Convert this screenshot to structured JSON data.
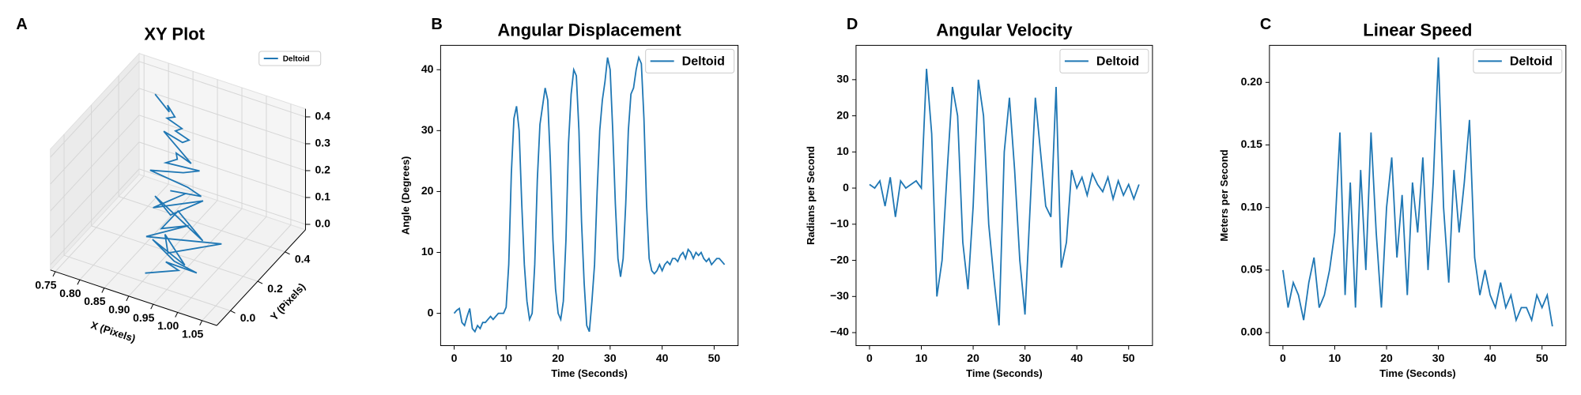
{
  "chart_data": [
    {
      "type": "line3d",
      "panel_label": "A",
      "title": "XY Plot",
      "xlabel": "X (Pixels)",
      "ylabel": "Y (Pixels)",
      "legend": "upper right",
      "xlim": [
        0.74,
        1.08
      ],
      "ylim": [
        -0.1,
        0.55
      ],
      "zlim": [
        -0.02,
        0.43
      ],
      "xticks": [
        0.75,
        {
          "value": 0.8,
          "label": "0.80"
        },
        0.85,
        {
          "value": 0.9,
          "label": "0.90"
        },
        0.95,
        {
          "value": 1.0,
          "label": "1.00"
        },
        1.05
      ],
      "yticks": [
        {
          "value": 0,
          "label": "0.0"
        },
        0.2,
        0.4
      ],
      "zticks": [
        {
          "value": 0,
          "label": "0.0"
        },
        0.1,
        0.2,
        0.3,
        0.4
      ],
      "grid": true,
      "series": [
        {
          "name": "Deltoid",
          "color": "#1f77b4",
          "x": [
            0.82,
            0.86,
            0.84,
            0.88,
            0.85,
            0.9,
            0.87,
            0.92,
            0.89,
            0.86,
            0.93,
            0.88,
            0.91,
            0.87,
            0.95,
            0.9,
            0.86,
            0.92,
            0.97,
            0.89,
            0.93,
            0.88,
            0.96,
            0.91,
            0.87,
            0.99,
            0.92,
            0.9,
            0.95,
            0.88,
            1.02,
            0.93,
            0.91,
            0.97,
            0.89,
            0.94,
            1.0,
            0.92,
            0.96,
            0.9
          ],
          "y": [
            0.38,
            0.34,
            0.4,
            0.31,
            0.36,
            0.29,
            0.35,
            0.27,
            0.33,
            0.3,
            0.25,
            0.32,
            0.22,
            0.28,
            0.24,
            0.3,
            0.2,
            0.26,
            0.18,
            0.24,
            0.21,
            0.15,
            0.23,
            0.17,
            0.2,
            0.12,
            0.19,
            0.14,
            0.16,
            0.1,
            0.15,
            0.08,
            0.13,
            0.06,
            0.11,
            0.09,
            0.04,
            0.1,
            0.05,
            0.02
          ],
          "z": [
            0.42,
            0.4,
            0.38,
            0.41,
            0.36,
            0.39,
            0.33,
            0.37,
            0.31,
            0.35,
            0.3,
            0.27,
            0.32,
            0.25,
            0.29,
            0.22,
            0.26,
            0.2,
            0.24,
            0.18,
            0.21,
            0.16,
            0.19,
            0.14,
            0.17,
            0.12,
            0.15,
            0.1,
            0.13,
            0.08,
            0.11,
            0.06,
            0.09,
            0.05,
            0.07,
            0.03,
            0.05,
            0.01,
            0.03,
            0.0
          ]
        }
      ]
    },
    {
      "type": "line",
      "panel_label": "B",
      "title": "Angular Displacement",
      "xlabel": "Time (Seconds)",
      "ylabel": "Angle (Degrees)",
      "legend": "upper right",
      "xlim": [
        -2.6,
        54.6
      ],
      "ylim": [
        -5.3,
        44
      ],
      "xticks": [
        0,
        10,
        20,
        30,
        40,
        50
      ],
      "yticks": [
        0,
        10,
        20,
        30,
        40
      ],
      "x": [
        0,
        0.5,
        1,
        1.5,
        2,
        2.5,
        3,
        3.5,
        4,
        4.5,
        5,
        5.5,
        6,
        6.5,
        7,
        7.5,
        8,
        8.5,
        9,
        9.5,
        10,
        10.5,
        11,
        11.5,
        12,
        12.5,
        13,
        13.5,
        14,
        14.5,
        15,
        15.5,
        16,
        16.5,
        17,
        17.5,
        18,
        18.5,
        19,
        19.5,
        20,
        20.5,
        21,
        21.5,
        22,
        22.5,
        23,
        23.5,
        24,
        24.5,
        25,
        25.5,
        26,
        26.5,
        27,
        27.5,
        28,
        28.5,
        29,
        29.5,
        30,
        30.5,
        31,
        31.5,
        32,
        32.5,
        33,
        33.5,
        34,
        34.5,
        35,
        35.5,
        36,
        36.5,
        37,
        37.5,
        38,
        38.5,
        39,
        39.5,
        40,
        40.5,
        41,
        41.5,
        42,
        42.5,
        43,
        43.5,
        44,
        44.5,
        45,
        45.5,
        46,
        46.5,
        47,
        47.5,
        48,
        48.5,
        49,
        49.5,
        50,
        50.5,
        51,
        51.5,
        52
      ],
      "series": [
        {
          "name": "Deltoid",
          "color": "#1f77b4",
          "values": [
            0,
            0.5,
            0.8,
            -1.5,
            -2,
            -0.5,
            0.8,
            -2.5,
            -3,
            -2,
            -2.5,
            -1.5,
            -1.5,
            -1,
            -0.5,
            -1,
            -0.5,
            0,
            0,
            0,
            1,
            8,
            23,
            32,
            34,
            30,
            18,
            8,
            2,
            -1,
            0,
            8,
            22,
            31,
            34,
            37,
            35,
            25,
            12,
            4,
            0,
            -1,
            2,
            12,
            28,
            36,
            40,
            39,
            30,
            15,
            5,
            -2,
            -3,
            2,
            8,
            20,
            30,
            35,
            38,
            42,
            40,
            30,
            18,
            9,
            6,
            9,
            18,
            30,
            36,
            37,
            40,
            42,
            41,
            32,
            18,
            9,
            7,
            6.5,
            7,
            8,
            7,
            8,
            8.5,
            8,
            9,
            9,
            8.5,
            9.5,
            10,
            9,
            10.5,
            10,
            9,
            10,
            9.5,
            10,
            9,
            8.5,
            9,
            8,
            8.5,
            9,
            9,
            8.5,
            8
          ]
        }
      ]
    },
    {
      "type": "line",
      "panel_label": "D",
      "title": "Angular Velocity",
      "xlabel": "Time (Seconds)",
      "ylabel": "Radians per Second",
      "legend": "upper right",
      "xlim": [
        -2.6,
        54.6
      ],
      "ylim": [
        -43.6,
        39.5
      ],
      "xticks": [
        0,
        10,
        20,
        30,
        40,
        50
      ],
      "yticks": [
        {
          "value": -40,
          "label": "−40"
        },
        {
          "value": -30,
          "label": "−30"
        },
        {
          "value": -20,
          "label": "−20"
        },
        {
          "value": -10,
          "label": "−10"
        },
        0,
        10,
        20,
        30
      ],
      "x": [
        0,
        1,
        2,
        3,
        4,
        5,
        6,
        7,
        8,
        9,
        10,
        11,
        12,
        13,
        14,
        15,
        16,
        17,
        18,
        19,
        20,
        21,
        22,
        23,
        24,
        25,
        26,
        27,
        28,
        29,
        30,
        31,
        32,
        33,
        34,
        35,
        36,
        37,
        38,
        39,
        40,
        41,
        42,
        43,
        44,
        45,
        46,
        47,
        48,
        49,
        50,
        51,
        52
      ],
      "series": [
        {
          "name": "Deltoid",
          "color": "#1f77b4",
          "values": [
            1,
            0,
            2,
            -5,
            3,
            -8,
            2,
            0,
            1,
            2,
            0,
            33,
            15,
            -30,
            -20,
            5,
            28,
            20,
            -15,
            -28,
            -5,
            30,
            20,
            -10,
            -25,
            -38,
            10,
            25,
            5,
            -20,
            -35,
            -5,
            25,
            10,
            -5,
            -8,
            28,
            -22,
            -15,
            5,
            0,
            3,
            -2,
            4,
            1,
            -1,
            3,
            -3,
            2,
            -2,
            1,
            -3,
            1
          ]
        }
      ]
    },
    {
      "type": "line",
      "panel_label": "C",
      "title": "Linear Speed",
      "xlabel": "Time (Seconds)",
      "ylabel": "Meters per Second",
      "legend": "upper right",
      "xlim": [
        -2.6,
        54.6
      ],
      "ylim": [
        -0.0104,
        0.2296
      ],
      "xticks": [
        0,
        10,
        20,
        30,
        40,
        50
      ],
      "yticks": [
        {
          "value": 0,
          "label": "0.00"
        },
        0.05,
        {
          "value": 0.1,
          "label": "0.10"
        },
        0.15,
        {
          "value": 0.2,
          "label": "0.20"
        }
      ],
      "x": [
        0,
        1,
        2,
        3,
        4,
        5,
        6,
        7,
        8,
        9,
        10,
        11,
        12,
        13,
        14,
        15,
        16,
        17,
        18,
        19,
        20,
        21,
        22,
        23,
        24,
        25,
        26,
        27,
        28,
        29,
        30,
        31,
        32,
        33,
        34,
        35,
        36,
        37,
        38,
        39,
        40,
        41,
        42,
        43,
        44,
        45,
        46,
        47,
        48,
        49,
        50,
        51,
        52
      ],
      "series": [
        {
          "name": "Deltoid",
          "color": "#1f77b4",
          "values": [
            0.05,
            0.02,
            0.04,
            0.03,
            0.01,
            0.04,
            0.06,
            0.02,
            0.03,
            0.05,
            0.08,
            0.16,
            0.03,
            0.12,
            0.02,
            0.13,
            0.05,
            0.16,
            0.08,
            0.02,
            0.1,
            0.14,
            0.06,
            0.11,
            0.03,
            0.12,
            0.08,
            0.14,
            0.05,
            0.12,
            0.22,
            0.1,
            0.04,
            0.13,
            0.08,
            0.12,
            0.17,
            0.06,
            0.03,
            0.05,
            0.03,
            0.02,
            0.04,
            0.02,
            0.03,
            0.01,
            0.02,
            0.02,
            0.01,
            0.03,
            0.02,
            0.03,
            0.005
          ]
        }
      ]
    }
  ]
}
